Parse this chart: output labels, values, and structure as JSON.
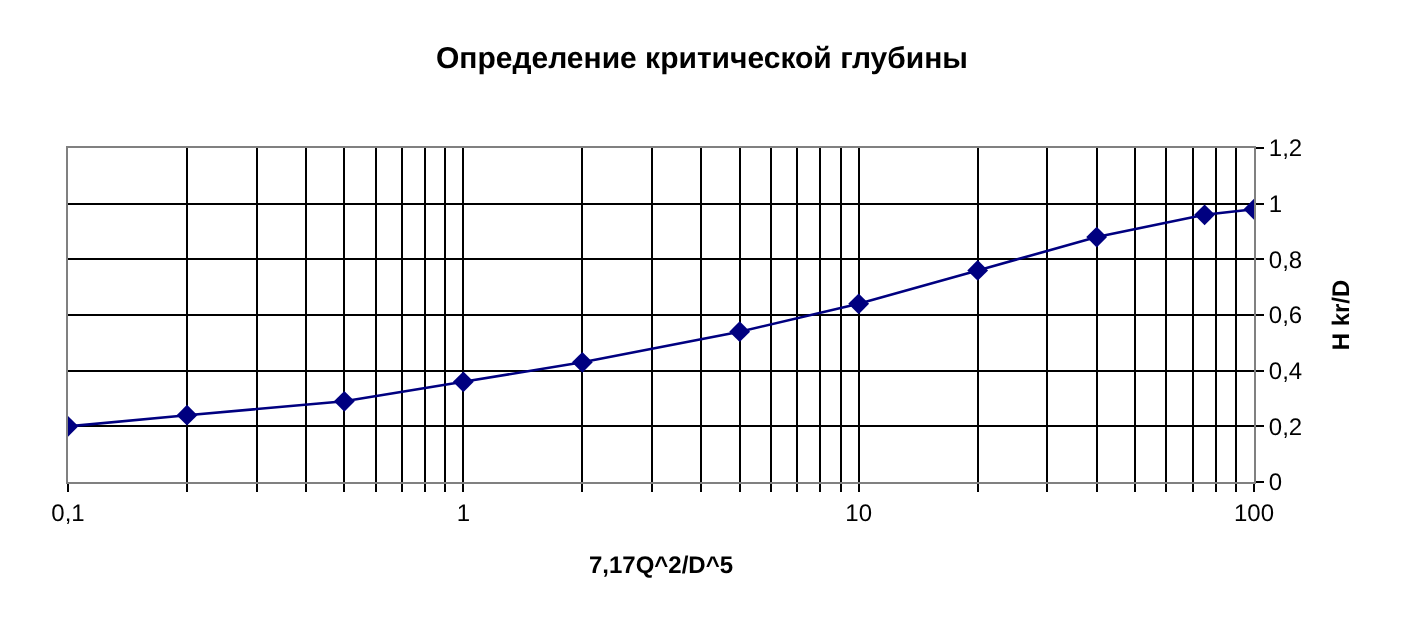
{
  "chart_data": {
    "type": "line",
    "title": "Определение критической глубины",
    "xlabel": "7,17Q^2/D^5",
    "ylabel": "H kr/D",
    "x": [
      0.1,
      0.2,
      0.5,
      1,
      2,
      5,
      10,
      20,
      40,
      75,
      100
    ],
    "series": [
      {
        "color": "#000080",
        "values": [
          0.2,
          0.24,
          0.29,
          0.36,
          0.43,
          0.54,
          0.64,
          0.76,
          0.88,
          0.96,
          0.98
        ]
      }
    ],
    "log": "x",
    "xlim": [
      0.1,
      100
    ],
    "xticks": [
      {
        "value": 0.1,
        "label": "0,1"
      },
      {
        "value": 0.2,
        "label": null
      },
      {
        "value": 0.3,
        "label": null
      },
      {
        "value": 0.4,
        "label": null
      },
      {
        "value": 0.5,
        "label": null
      },
      {
        "value": 0.6,
        "label": null
      },
      {
        "value": 0.7,
        "label": null
      },
      {
        "value": 0.8,
        "label": null
      },
      {
        "value": 0.9,
        "label": null
      },
      1,
      {
        "value": 2,
        "label": null
      },
      {
        "value": 3,
        "label": null
      },
      {
        "value": 4,
        "label": null
      },
      {
        "value": 5,
        "label": null
      },
      {
        "value": 6,
        "label": null
      },
      {
        "value": 7,
        "label": null
      },
      {
        "value": 8,
        "label": null
      },
      {
        "value": 9,
        "label": null
      },
      10,
      {
        "value": 20,
        "label": null
      },
      {
        "value": 30,
        "label": null
      },
      {
        "value": 40,
        "label": null
      },
      {
        "value": 50,
        "label": null
      },
      {
        "value": 60,
        "label": null
      },
      {
        "value": 70,
        "label": null
      },
      {
        "value": 80,
        "label": null
      },
      {
        "value": 90,
        "label": null
      },
      100
    ],
    "ylim": [
      0,
      1.2
    ],
    "yticks": [
      0,
      {
        "value": 0.2,
        "label": "0,2"
      },
      {
        "value": 0.4,
        "label": "0,4"
      },
      {
        "value": 0.6,
        "label": "0,6"
      },
      {
        "value": 0.8,
        "label": "0,8"
      },
      1,
      {
        "value": 1.2,
        "label": "1,2"
      }
    ],
    "grid": true,
    "legend": false,
    "marker": "diamond",
    "line_style": "solid"
  }
}
